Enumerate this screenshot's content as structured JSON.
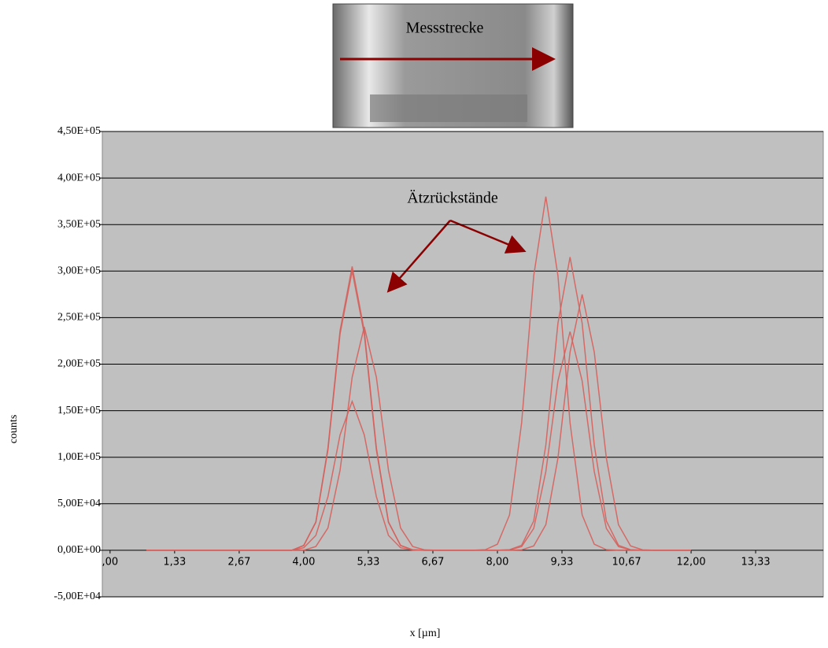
{
  "chart_data": {
    "type": "line",
    "photo_label": "Messstrecke",
    "annotation": "Ätzrückstände",
    "y_label": "counts",
    "x_label": "x [µm]",
    "x": [
      0.75,
      1.0,
      1.25,
      1.5,
      1.75,
      2.0,
      2.25,
      2.5,
      2.75,
      3.0,
      3.25,
      3.5,
      3.75,
      4.0,
      4.25,
      4.5,
      4.75,
      5.0,
      5.25,
      5.5,
      5.75,
      6.0,
      6.25,
      6.5,
      6.75,
      7.0,
      7.25,
      7.5,
      7.75,
      8.0,
      8.25,
      8.5,
      8.75,
      9.0,
      9.25,
      9.5,
      9.75,
      10.0,
      10.25,
      10.5,
      10.75,
      11.0,
      11.25,
      11.5,
      11.75,
      12.0
    ],
    "series": [
      {
        "color": "#d5615c",
        "values": [
          0,
          0,
          0,
          0,
          0,
          0,
          0,
          0,
          0,
          0,
          0,
          0,
          0,
          5200,
          30500,
          110000,
          236000,
          305000,
          236000,
          110000,
          30500,
          5200,
          500,
          0,
          0,
          0,
          0,
          0,
          650,
          6500,
          38000,
          137000,
          295000,
          380000,
          295000,
          137000,
          38000,
          6500,
          650,
          0,
          0,
          0,
          0,
          0,
          0,
          0
        ]
      },
      {
        "color": "#d5615c",
        "values": [
          0,
          0,
          0,
          0,
          0,
          0,
          0,
          0,
          0,
          0,
          0,
          0,
          0,
          5100,
          30000,
          108000,
          232500,
          300000,
          232500,
          108000,
          30000,
          5100,
          500,
          0,
          0,
          0,
          0,
          0,
          0,
          0,
          540,
          5400,
          31500,
          113000,
          244000,
          315000,
          244000,
          113000,
          31500,
          5400,
          540,
          0,
          0,
          0,
          0,
          0
        ]
      },
      {
        "color": "#d5615c",
        "values": [
          0,
          0,
          0,
          0,
          0,
          0,
          0,
          0,
          0,
          0,
          0,
          0,
          0,
          0,
          4100,
          24000,
          86000,
          186000,
          240000,
          186000,
          86000,
          24000,
          4100,
          400,
          0,
          0,
          0,
          0,
          0,
          0,
          0,
          470,
          4700,
          27500,
          99000,
          213000,
          275000,
          213000,
          99000,
          27500,
          4700,
          470,
          0,
          0,
          0,
          0
        ]
      },
      {
        "color": "#d5615c",
        "values": [
          0,
          0,
          0,
          0,
          0,
          0,
          0,
          0,
          0,
          0,
          0,
          0,
          0,
          2700,
          16000,
          57600,
          124000,
          160000,
          124000,
          57600,
          16000,
          2700,
          270,
          0,
          0,
          0,
          0,
          0,
          0,
          0,
          400,
          4000,
          23500,
          84600,
          182000,
          235000,
          182000,
          84600,
          23500,
          4000,
          400,
          0,
          0,
          0,
          0,
          0
        ]
      }
    ],
    "xlim": [
      -0.16,
      14.73
    ],
    "xticks": [
      {
        "value": 0,
        "label": ",00"
      },
      {
        "value": 1.333,
        "label": "1,33"
      },
      {
        "value": 2.667,
        "label": "2,67"
      },
      {
        "value": 4,
        "label": "4,00"
      },
      {
        "value": 5.333,
        "label": "5,33"
      },
      {
        "value": 6.667,
        "label": "6,67"
      },
      {
        "value": 8,
        "label": "8,00"
      },
      {
        "value": 9.333,
        "label": "9,33"
      },
      {
        "value": 10.667,
        "label": "10,67"
      },
      {
        "value": 12,
        "label": "12,00"
      },
      {
        "value": 13.333,
        "label": "13,33"
      }
    ],
    "ylim": [
      -50000,
      450000
    ],
    "yticks": [
      {
        "value": -50000,
        "label": "-5,00E+04"
      },
      {
        "value": 0,
        "label": "0,00E+00"
      },
      {
        "value": 50000,
        "label": "5,00E+04"
      },
      {
        "value": 100000,
        "label": "1,00E+05"
      },
      {
        "value": 150000,
        "label": "1,50E+05"
      },
      {
        "value": 200000,
        "label": "2,00E+05"
      },
      {
        "value": 250000,
        "label": "2,50E+05"
      },
      {
        "value": 300000,
        "label": "3,00E+05"
      },
      {
        "value": 350000,
        "label": "3,50E+05"
      },
      {
        "value": 400000,
        "label": "4,00E+05"
      },
      {
        "value": 450000,
        "label": "4,50E+05"
      }
    ],
    "grid": true
  }
}
